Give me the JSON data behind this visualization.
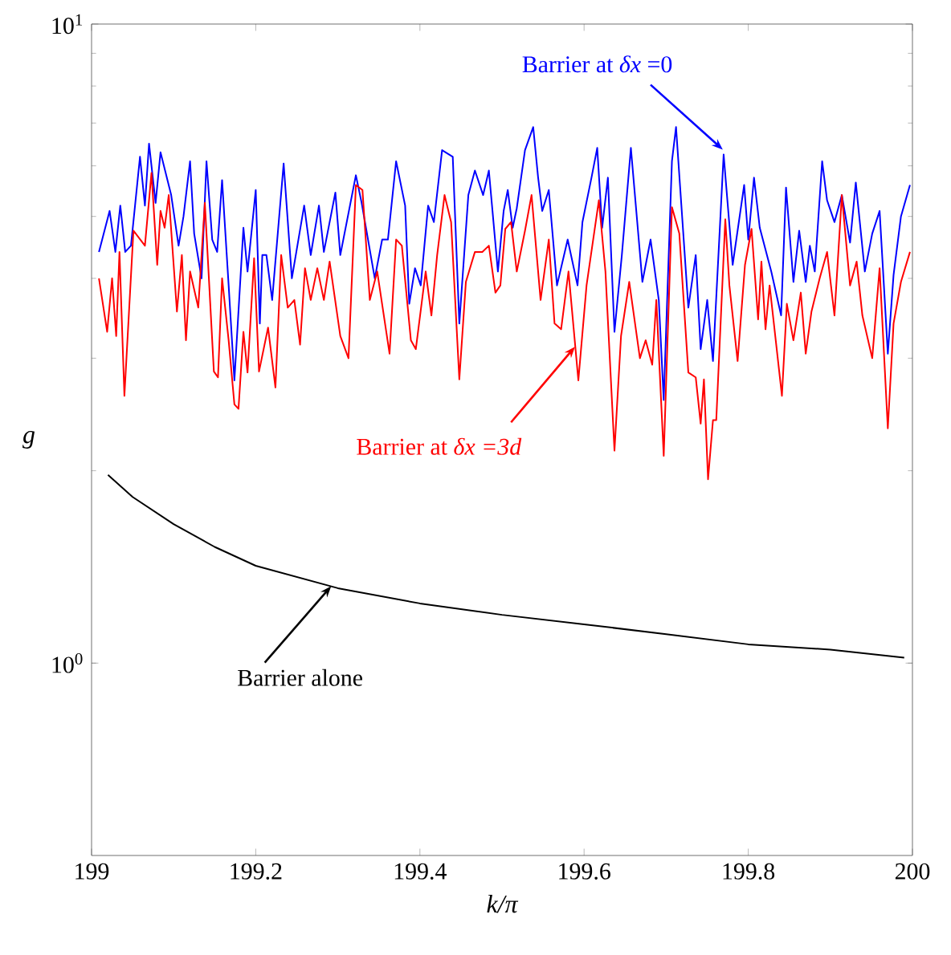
{
  "chart_data": {
    "type": "line",
    "xlabel": "k/π",
    "ylabel": "g",
    "xlim": [
      199,
      200
    ],
    "ylim": [
      0.5,
      10
    ],
    "log": "y",
    "xticks": [
      199,
      199.2,
      199.4,
      199.6,
      199.8,
      200
    ],
    "yticks": [
      {
        "value": 1,
        "label": "10$^{0}$"
      },
      {
        "value": 10,
        "label": "10$^{1}$"
      }
    ],
    "series": [
      {
        "name": "Barrier at *δx* =0",
        "color": "#0000ff",
        "x": [
          199.009,
          199.022,
          199.029,
          199.035,
          199.041,
          199.048,
          199.059,
          199.065,
          199.07,
          199.078,
          199.084,
          199.097,
          199.106,
          199.112,
          199.12,
          199.125,
          199.134,
          199.14,
          199.147,
          199.153,
          199.159,
          199.167,
          199.174,
          199.185,
          199.19,
          199.2,
          199.205,
          199.208,
          199.213,
          199.22,
          199.234,
          199.244,
          199.259,
          199.267,
          199.277,
          199.283,
          199.297,
          199.303,
          199.322,
          199.329,
          199.345,
          199.354,
          199.361,
          199.371,
          199.382,
          199.387,
          199.394,
          199.401,
          199.41,
          199.417,
          199.427,
          199.44,
          199.448,
          199.459,
          199.467,
          199.477,
          199.484,
          199.495,
          199.502,
          199.507,
          199.513,
          199.518,
          199.528,
          199.538,
          199.544,
          199.549,
          199.557,
          199.567,
          199.58,
          199.592,
          199.598,
          199.609,
          199.616,
          199.622,
          199.629,
          199.637,
          199.646,
          199.657,
          199.671,
          199.681,
          199.691,
          199.697,
          199.707,
          199.712,
          199.727,
          199.736,
          199.742,
          199.75,
          199.757,
          199.77,
          199.781,
          199.795,
          199.8,
          199.807,
          199.814,
          199.828,
          199.84,
          199.846,
          199.855,
          199.862,
          199.87,
          199.875,
          199.881,
          199.89,
          199.896,
          199.905,
          199.914,
          199.924,
          199.931,
          199.942,
          199.951,
          199.96,
          199.97,
          199.977,
          199.986,
          199.997
        ],
        "values": [
          4.4,
          5.1,
          4.4,
          5.2,
          4.4,
          4.5,
          6.2,
          5.2,
          6.5,
          5.25,
          6.3,
          5.4,
          4.5,
          5.0,
          6.1,
          4.7,
          4.0,
          6.1,
          4.6,
          4.4,
          5.7,
          3.9,
          2.77,
          4.8,
          4.1,
          5.5,
          3.4,
          4.35,
          4.35,
          3.7,
          6.05,
          4.0,
          5.2,
          4.35,
          5.2,
          4.4,
          5.45,
          4.35,
          5.8,
          5.25,
          4.0,
          4.6,
          4.6,
          6.1,
          5.2,
          3.65,
          4.15,
          3.9,
          5.2,
          4.9,
          6.35,
          6.2,
          3.4,
          5.4,
          5.9,
          5.4,
          5.9,
          4.1,
          5.1,
          5.5,
          4.8,
          5.15,
          6.35,
          6.9,
          5.75,
          5.1,
          5.5,
          3.9,
          4.6,
          3.9,
          4.9,
          5.75,
          6.4,
          4.8,
          5.75,
          3.3,
          4.35,
          6.4,
          3.95,
          4.6,
          3.7,
          2.58,
          6.1,
          6.9,
          3.6,
          4.35,
          3.1,
          3.7,
          2.97,
          6.25,
          4.2,
          5.6,
          4.6,
          5.75,
          4.8,
          4.1,
          3.5,
          5.55,
          3.95,
          4.75,
          3.95,
          4.5,
          4.1,
          6.1,
          5.3,
          4.9,
          5.4,
          4.55,
          5.65,
          4.1,
          4.7,
          5.1,
          3.05,
          4.05,
          5.0,
          5.6
        ]
      },
      {
        "name": "Barrier at *δx =3d*",
        "color": "#ff0000",
        "x": [
          199.009,
          199.019,
          199.025,
          199.03,
          199.034,
          199.04,
          199.051,
          199.065,
          199.073,
          199.08,
          199.084,
          199.089,
          199.094,
          199.104,
          199.11,
          199.115,
          199.12,
          199.13,
          199.138,
          199.149,
          199.154,
          199.159,
          199.167,
          199.174,
          199.179,
          199.185,
          199.19,
          199.198,
          199.204,
          199.215,
          199.224,
          199.231,
          199.239,
          199.247,
          199.254,
          199.26,
          199.267,
          199.275,
          199.283,
          199.29,
          199.303,
          199.313,
          199.322,
          199.33,
          199.339,
          199.348,
          199.363,
          199.371,
          199.378,
          199.389,
          199.395,
          199.407,
          199.414,
          199.421,
          199.43,
          199.438,
          199.448,
          199.456,
          199.467,
          199.476,
          199.484,
          199.492,
          199.498,
          199.504,
          199.511,
          199.518,
          199.528,
          199.536,
          199.547,
          199.557,
          199.564,
          199.572,
          199.581,
          199.593,
          199.603,
          199.618,
          199.626,
          199.637,
          199.645,
          199.655,
          199.668,
          199.675,
          199.683,
          199.688,
          199.697,
          199.707,
          199.716,
          199.727,
          199.736,
          199.742,
          199.746,
          199.751,
          199.757,
          199.761,
          199.772,
          199.777,
          199.787,
          199.796,
          199.804,
          199.812,
          199.816,
          199.821,
          199.826,
          199.841,
          199.847,
          199.855,
          199.864,
          199.87,
          199.877,
          199.887,
          199.896,
          199.905,
          199.914,
          199.924,
          199.932,
          199.939,
          199.951,
          199.96,
          199.97,
          199.977,
          199.986,
          199.997
        ],
        "values": [
          4.0,
          3.3,
          4.0,
          3.25,
          4.4,
          2.62,
          4.75,
          4.5,
          5.85,
          4.2,
          5.1,
          4.8,
          5.4,
          3.55,
          4.35,
          3.2,
          4.1,
          3.6,
          5.25,
          2.86,
          2.8,
          4.0,
          3.2,
          2.54,
          2.5,
          3.3,
          2.85,
          4.3,
          2.86,
          3.35,
          2.7,
          4.35,
          3.6,
          3.7,
          3.15,
          4.15,
          3.7,
          4.15,
          3.7,
          4.25,
          3.25,
          3.0,
          5.6,
          5.5,
          3.7,
          4.1,
          3.05,
          4.6,
          4.5,
          3.2,
          3.1,
          4.1,
          3.5,
          4.35,
          5.4,
          4.9,
          2.78,
          3.95,
          4.4,
          4.4,
          4.5,
          3.8,
          3.9,
          4.78,
          4.9,
          4.1,
          4.75,
          5.4,
          3.7,
          4.6,
          3.4,
          3.33,
          4.1,
          2.77,
          3.9,
          5.3,
          4.1,
          2.15,
          3.25,
          3.95,
          3.0,
          3.2,
          2.93,
          3.7,
          2.11,
          5.17,
          4.7,
          2.85,
          2.8,
          2.37,
          2.78,
          1.94,
          2.4,
          2.4,
          4.95,
          3.9,
          2.97,
          4.2,
          4.78,
          3.45,
          4.25,
          3.33,
          3.9,
          2.62,
          3.65,
          3.2,
          3.8,
          3.05,
          3.55,
          4.0,
          4.4,
          3.5,
          5.4,
          3.9,
          4.25,
          3.5,
          3.0,
          4.15,
          2.33,
          3.4,
          3.95,
          4.4
        ]
      },
      {
        "name": "Barrier alone",
        "color": "#000000",
        "x": [
          199.02,
          199.05,
          199.1,
          199.15,
          199.2,
          199.3,
          199.4,
          199.5,
          199.6,
          199.7,
          199.8,
          199.9,
          199.99
        ],
        "values": [
          1.97,
          1.82,
          1.65,
          1.52,
          1.42,
          1.31,
          1.24,
          1.19,
          1.15,
          1.11,
          1.07,
          1.05,
          1.02
        ]
      }
    ]
  }
}
